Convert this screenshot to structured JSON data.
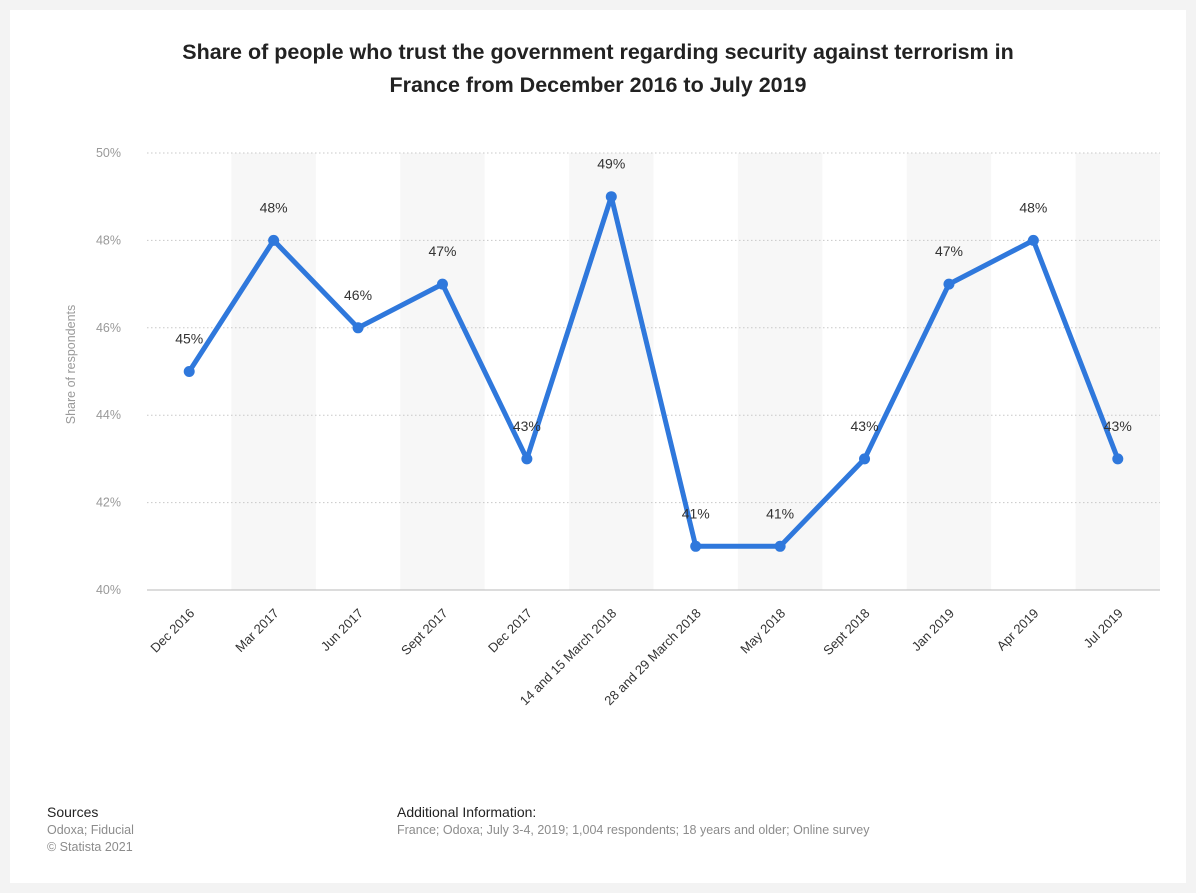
{
  "title_lines": [
    "Share of people who trust the government regarding security against terrorism in",
    "France from December 2016 to July 2019"
  ],
  "colors": {
    "line": "#2f78dc",
    "band": "#f7f7f7",
    "grid": "#c8c8c8"
  },
  "chart_data": {
    "type": "line",
    "title": "Share of people who trust the government regarding security against terrorism in France from December 2016 to July 2019",
    "categories": [
      "Dec 2016",
      "Mar 2017",
      "Jun 2017",
      "Sept 2017",
      "Dec 2017",
      "14 and 15 March 2018",
      "28 and 29 March 2018",
      "May 2018",
      "Sept 2018",
      "Jan 2019",
      "Apr 2019",
      "Jul 2019"
    ],
    "values": [
      45,
      48,
      46,
      47,
      43,
      49,
      41,
      41,
      43,
      47,
      48,
      43
    ],
    "data_labels": [
      "45%",
      "48%",
      "46%",
      "47%",
      "43%",
      "49%",
      "41%",
      "41%",
      "43%",
      "47%",
      "48%",
      "43%"
    ],
    "ylabel": "Share of respondents",
    "xlabel": "",
    "ylim": [
      40,
      50
    ],
    "yticks": [
      40,
      42,
      44,
      46,
      48,
      50
    ],
    "ytick_labels": [
      "40%",
      "42%",
      "44%",
      "46%",
      "48%",
      "50%"
    ],
    "grid": true
  },
  "footer": {
    "sources_label": "Sources",
    "sources_lines": [
      "Odoxa; Fiducial",
      "© Statista 2021"
    ],
    "additional_label": "Additional Information:",
    "additional_text": "France; Odoxa; July 3-4, 2019; 1,004 respondents; 18 years and older; Online survey"
  }
}
